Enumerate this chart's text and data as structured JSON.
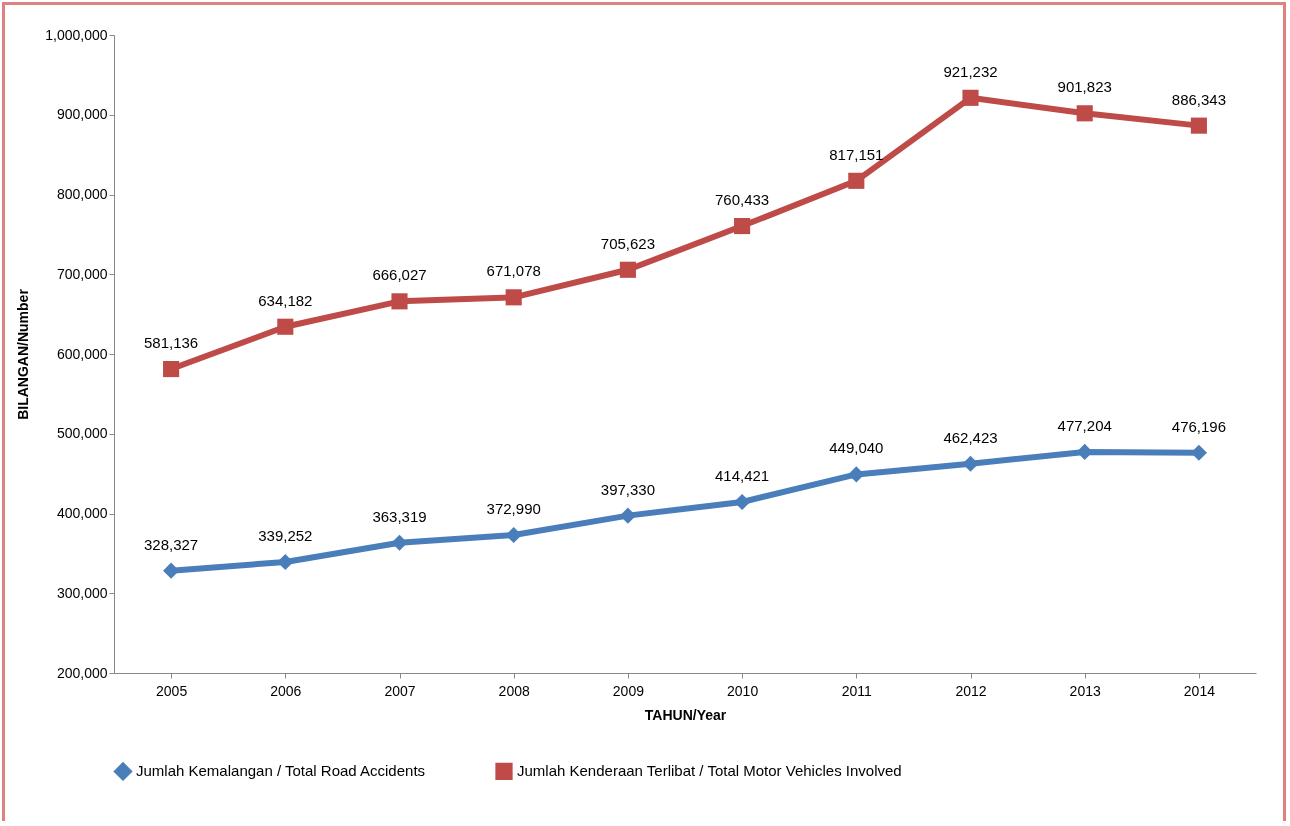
{
  "chart_data": {
    "type": "line",
    "xlabel": "TAHUN/Year",
    "ylabel": "BILANGAN/Number",
    "categories": [
      "2005",
      "2006",
      "2007",
      "2008",
      "2009",
      "2010",
      "2011",
      "2012",
      "2013",
      "2014"
    ],
    "series": [
      {
        "name": "Jumlah Kemalangan / Total Road Accidents",
        "color": "#4a7ebb",
        "marker": "diamond",
        "values": [
          328327,
          339252,
          363319,
          372990,
          397330,
          414421,
          449040,
          462423,
          477204,
          476196
        ],
        "value_labels": [
          "328,327",
          "339,252",
          "363,319",
          "372,990",
          "397,330",
          "414,421",
          "449,040",
          "462,423",
          "477,204",
          "476,196"
        ]
      },
      {
        "name": "Jumlah Kenderaan Terlibat / Total Motor Vehicles Involved",
        "color": "#be4b48",
        "marker": "square",
        "values": [
          581136,
          634182,
          666027,
          671078,
          705623,
          760433,
          817151,
          921232,
          901823,
          886343
        ],
        "value_labels": [
          "581,136",
          "634,182",
          "666,027",
          "671,078",
          "705,623",
          "760,433",
          "817,151",
          "921,232",
          "901,823",
          "886,343"
        ]
      }
    ],
    "ylim": [
      200000,
      1000000
    ],
    "yticks": [
      {
        "value": 200000,
        "label": "200,000"
      },
      {
        "value": 300000,
        "label": "300,000"
      },
      {
        "value": 400000,
        "label": "400,000"
      },
      {
        "value": 500000,
        "label": "500,000"
      },
      {
        "value": 600000,
        "label": "600,000"
      },
      {
        "value": 700000,
        "label": "700,000"
      },
      {
        "value": 800000,
        "label": "800,000"
      },
      {
        "value": 900000,
        "label": "900,000"
      },
      {
        "value": 1000000,
        "label": "1,000,000"
      }
    ],
    "grid": false,
    "legend": "bottom",
    "line_style": "solid"
  }
}
